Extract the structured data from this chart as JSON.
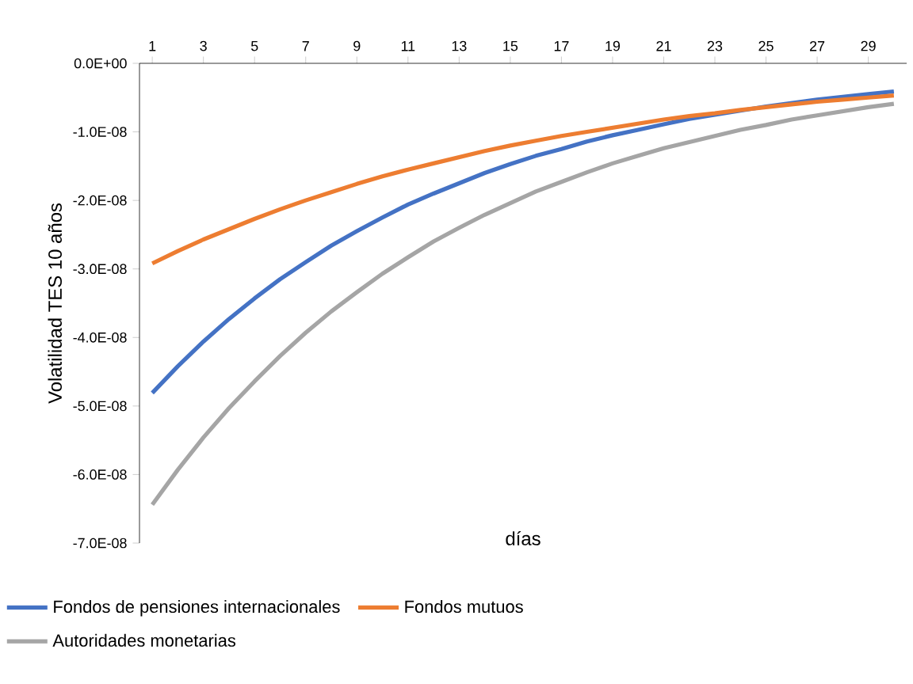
{
  "chart_data": {
    "type": "line",
    "xlabel": "días",
    "ylabel": "Volatilidad TES 10 años",
    "x": [
      1,
      2,
      3,
      4,
      5,
      6,
      7,
      8,
      9,
      10,
      11,
      12,
      13,
      14,
      15,
      16,
      17,
      18,
      19,
      20,
      21,
      22,
      23,
      24,
      25,
      26,
      27,
      28,
      29,
      30
    ],
    "series": [
      {
        "name": "Fondos de pensiones internacionales",
        "color": "#4472c4",
        "values": [
          -4.81e-08,
          -4.42e-08,
          -4.06e-08,
          -3.73e-08,
          -3.43e-08,
          -3.15e-08,
          -2.9e-08,
          -2.66e-08,
          -2.45e-08,
          -2.25e-08,
          -2.06e-08,
          -1.9e-08,
          -1.75e-08,
          -1.6e-08,
          -1.47e-08,
          -1.35e-08,
          -1.25e-08,
          -1.14e-08,
          -1.05e-08,
          -9.7e-09,
          -8.9e-09,
          -8.1e-09,
          -7.5e-09,
          -6.9e-09,
          -6.3e-09,
          -5.8e-09,
          -5.3e-09,
          -4.9e-09,
          -4.5e-09,
          -4.1e-09
        ]
      },
      {
        "name": "Fondos mutuos",
        "color": "#ed7d31",
        "values": [
          -2.92e-08,
          -2.74e-08,
          -2.57e-08,
          -2.42e-08,
          -2.27e-08,
          -2.13e-08,
          -2e-08,
          -1.88e-08,
          -1.76e-08,
          -1.65e-08,
          -1.55e-08,
          -1.46e-08,
          -1.37e-08,
          -1.28e-08,
          -1.2e-08,
          -1.13e-08,
          -1.06e-08,
          -1e-08,
          -9.4e-09,
          -8.8e-09,
          -8.2e-09,
          -7.7e-09,
          -7.3e-09,
          -6.8e-09,
          -6.4e-09,
          -6e-09,
          -5.6e-09,
          -5.3e-09,
          -5e-09,
          -4.7e-09
        ]
      },
      {
        "name": "Autoridades monetarias",
        "color": "#a5a5a5",
        "values": [
          -6.44e-08,
          -5.93e-08,
          -5.46e-08,
          -5.03e-08,
          -4.64e-08,
          -4.27e-08,
          -3.93e-08,
          -3.62e-08,
          -3.34e-08,
          -3.07e-08,
          -2.83e-08,
          -2.6e-08,
          -2.4e-08,
          -2.21e-08,
          -2.04e-08,
          -1.87e-08,
          -1.73e-08,
          -1.59e-08,
          -1.46e-08,
          -1.35e-08,
          -1.24e-08,
          -1.15e-08,
          -1.06e-08,
          -9.7e-09,
          -9e-09,
          -8.2e-09,
          -7.6e-09,
          -7e-09,
          -6.4e-09,
          -5.9e-09
        ]
      }
    ],
    "xlim": [
      0.5,
      30.5
    ],
    "xticks": [
      1,
      3,
      5,
      7,
      9,
      11,
      13,
      15,
      17,
      19,
      21,
      23,
      25,
      27,
      29
    ],
    "ylim": [
      -7e-08,
      0
    ],
    "yticks": [
      {
        "value": 0,
        "label": "0.0E+00"
      },
      {
        "value": -1e-08,
        "label": "-1.0E-08"
      },
      {
        "value": -2e-08,
        "label": "-2.0E-08"
      },
      {
        "value": -3e-08,
        "label": "-3.0E-08"
      },
      {
        "value": -4e-08,
        "label": "-4.0E-08"
      },
      {
        "value": -5e-08,
        "label": "-5.0E-08"
      },
      {
        "value": -6e-08,
        "label": "-6.0E-08"
      },
      {
        "value": -7e-08,
        "label": "-7.0E-08"
      }
    ],
    "grid": false,
    "legend": "bottom",
    "marker": "none",
    "line_style": "solid"
  }
}
